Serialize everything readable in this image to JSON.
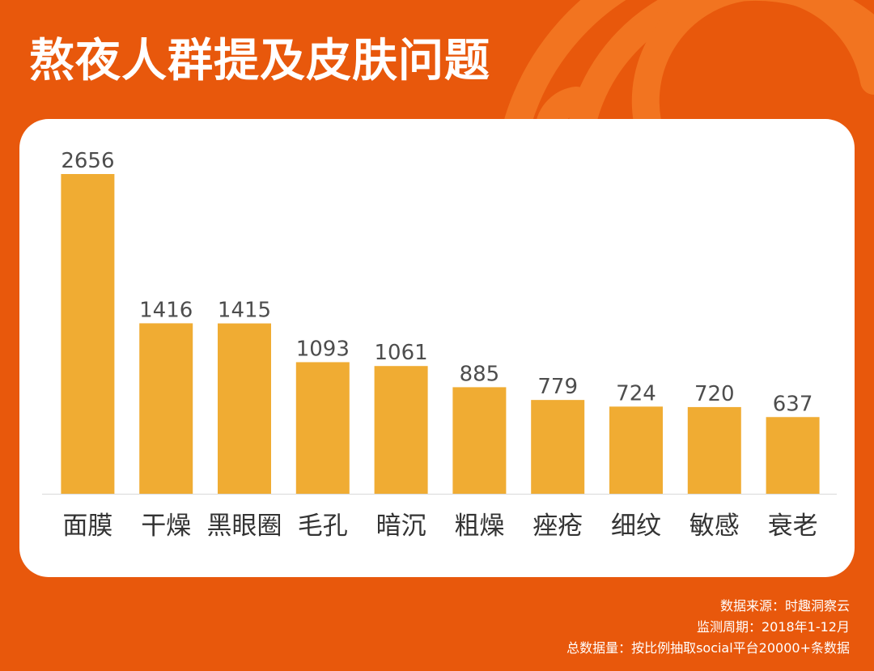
{
  "page": {
    "title": "熬夜人群提及皮肤问题",
    "colors": {
      "background": "#E8580C",
      "arc": "#F27420",
      "card": "#FFFFFF",
      "bar": "#F0AC33",
      "value_text": "#4D4D4D",
      "category_text": "#333333"
    }
  },
  "chart_data": {
    "type": "bar",
    "title": "熬夜人群提及皮肤问题",
    "categories": [
      "面膜",
      "干燥",
      "黑眼圈",
      "毛孔",
      "暗沉",
      "粗燥",
      "痤疮",
      "细纹",
      "敏感",
      "衰老"
    ],
    "values": [
      2656,
      1416,
      1415,
      1093,
      1061,
      885,
      779,
      724,
      720,
      637
    ],
    "value_labels": [
      "2656",
      "1416",
      "1415",
      "1093",
      "1061",
      "885",
      "779",
      "724",
      "720",
      "637"
    ],
    "xlabel": "",
    "ylabel": "",
    "ylim": [
      0,
      2656
    ],
    "grid": false,
    "legend": "none",
    "baseline": true
  },
  "footer": {
    "source": "数据来源：时趣洞察云",
    "period": "监测周期：2018年1-12月",
    "total": "总数据量：按比例抽取social平台20000+条数据"
  }
}
